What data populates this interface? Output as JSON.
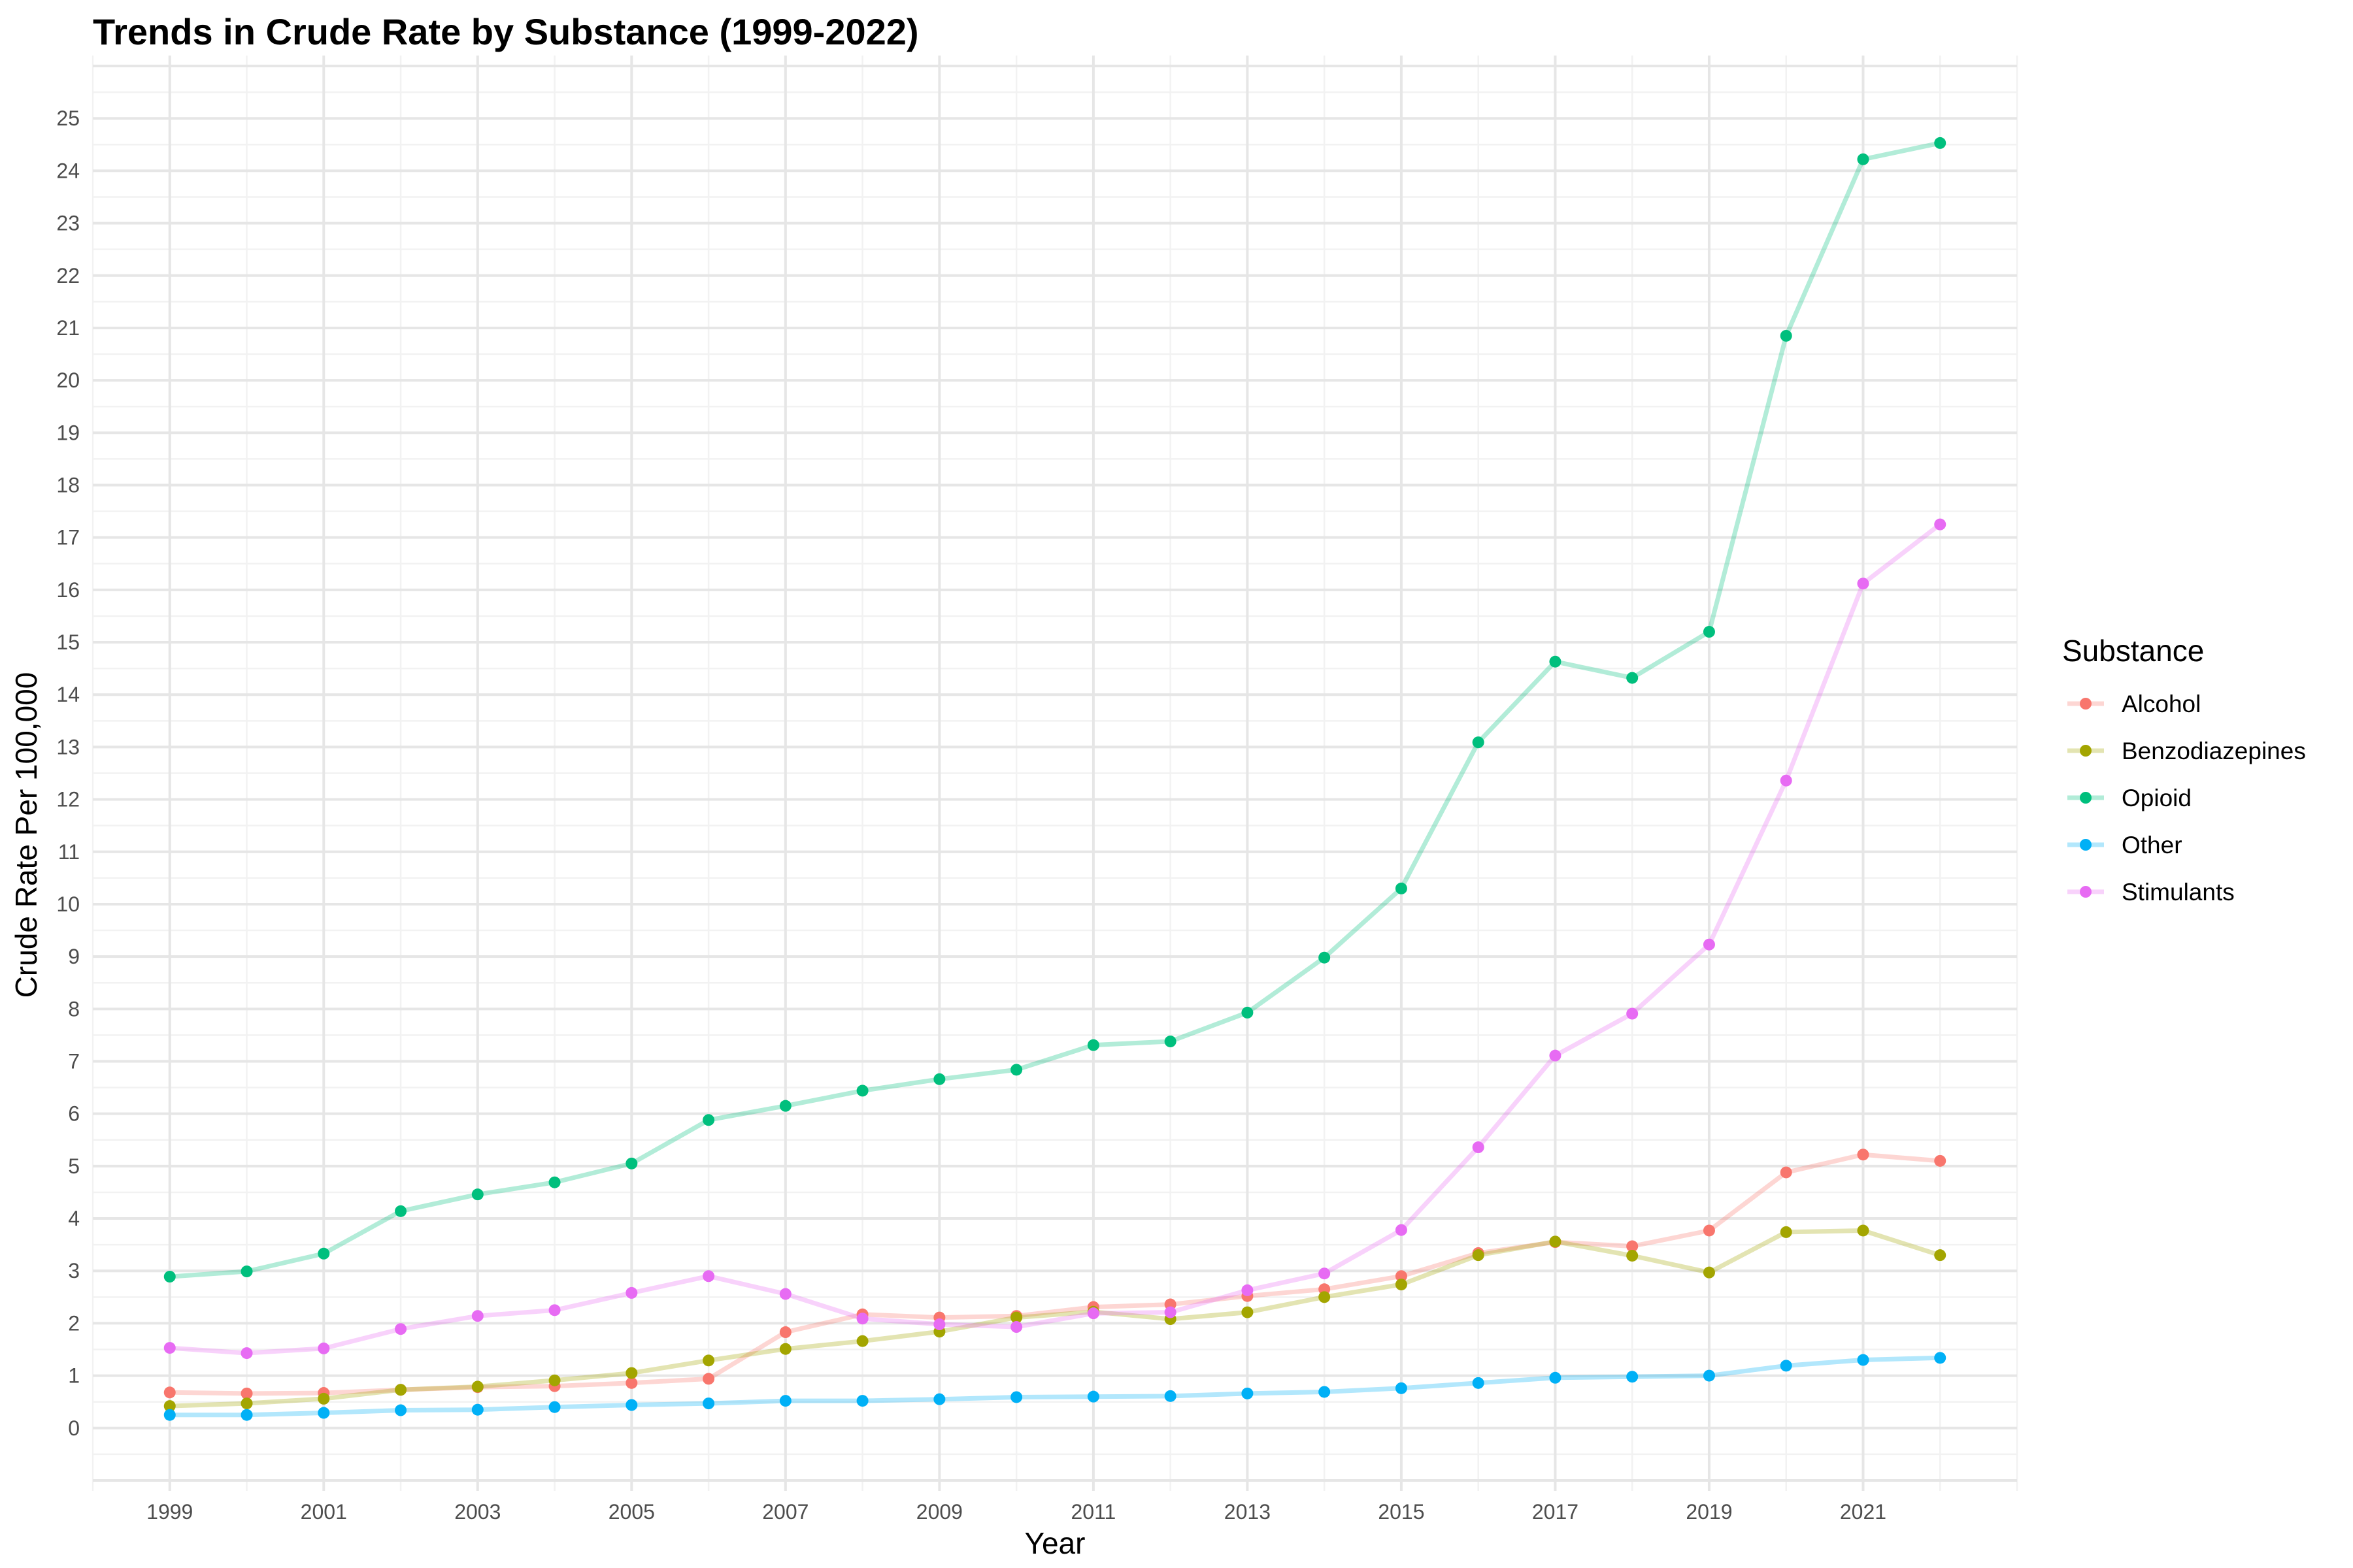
{
  "chart_data": {
    "type": "line",
    "title": "Trends in Crude Rate by Substance (1999-2022)",
    "xlabel": "Year",
    "ylabel": "Crude Rate Per 100,000",
    "x": [
      1999,
      2000,
      2001,
      2002,
      2003,
      2004,
      2005,
      2006,
      2007,
      2008,
      2009,
      2010,
      2011,
      2012,
      2013,
      2014,
      2015,
      2016,
      2017,
      2018,
      2019,
      2020,
      2021,
      2022
    ],
    "xlim": [
      1998,
      2023
    ],
    "ylim": [
      -1.2,
      26.2
    ],
    "x_tick_values": [
      1999,
      2001,
      2003,
      2005,
      2007,
      2009,
      2011,
      2013,
      2015,
      2017,
      2019,
      2021
    ],
    "x_tick_labels": [
      "1999",
      "2001",
      "2003",
      "2005",
      "2007",
      "2009",
      "2011",
      "2013",
      "2015",
      "2017",
      "2019",
      "2021"
    ],
    "y_tick_values": [
      0,
      1,
      2,
      3,
      4,
      5,
      6,
      7,
      8,
      9,
      10,
      11,
      12,
      13,
      14,
      15,
      16,
      17,
      18,
      19,
      20,
      21,
      22,
      23,
      24,
      25
    ],
    "y_tick_labels": [
      "0",
      "1",
      "2",
      "3",
      "4",
      "5",
      "6",
      "7",
      "8",
      "9",
      "10",
      "11",
      "12",
      "13",
      "14",
      "15",
      "16",
      "17",
      "18",
      "19",
      "20",
      "21",
      "22",
      "23",
      "24",
      "25"
    ],
    "grid": true,
    "legend_position": "right",
    "legend_title": "Substance",
    "series": [
      {
        "name": "Alcohol",
        "color": "#F8766D",
        "values": [
          0.68,
          0.66,
          0.67,
          0.73,
          0.78,
          0.8,
          0.86,
          0.94,
          1.83,
          2.17,
          2.11,
          2.14,
          2.31,
          2.36,
          2.52,
          2.65,
          2.9,
          3.34,
          3.55,
          3.47,
          3.77,
          4.88,
          5.22,
          5.1
        ]
      },
      {
        "name": "Benzodiazepines",
        "color": "#A3A500",
        "values": [
          0.42,
          0.47,
          0.56,
          0.73,
          0.79,
          0.91,
          1.05,
          1.29,
          1.51,
          1.66,
          1.84,
          2.11,
          2.22,
          2.08,
          2.21,
          2.5,
          2.74,
          3.3,
          3.56,
          3.29,
          2.97,
          3.74,
          3.77,
          3.3
        ]
      },
      {
        "name": "Opioid",
        "color": "#00BF7D",
        "values": [
          2.89,
          2.99,
          3.33,
          4.14,
          4.46,
          4.69,
          5.05,
          5.88,
          6.15,
          6.44,
          6.66,
          6.84,
          7.31,
          7.38,
          7.93,
          8.98,
          10.3,
          13.09,
          14.63,
          14.32,
          15.2,
          20.85,
          24.22,
          24.53
        ]
      },
      {
        "name": "Other",
        "color": "#00B0F6",
        "values": [
          0.25,
          0.25,
          0.29,
          0.34,
          0.35,
          0.4,
          0.44,
          0.47,
          0.52,
          0.52,
          0.55,
          0.59,
          0.6,
          0.61,
          0.66,
          0.69,
          0.76,
          0.86,
          0.96,
          0.98,
          1.0,
          1.19,
          1.3,
          1.34
        ]
      },
      {
        "name": "Stimulants",
        "color": "#E76BF3",
        "values": [
          1.53,
          1.43,
          1.52,
          1.89,
          2.14,
          2.25,
          2.58,
          2.9,
          2.56,
          2.09,
          1.98,
          1.93,
          2.19,
          2.21,
          2.63,
          2.95,
          3.78,
          5.36,
          7.11,
          7.91,
          9.23,
          12.36,
          16.12,
          17.25
        ]
      }
    ]
  }
}
